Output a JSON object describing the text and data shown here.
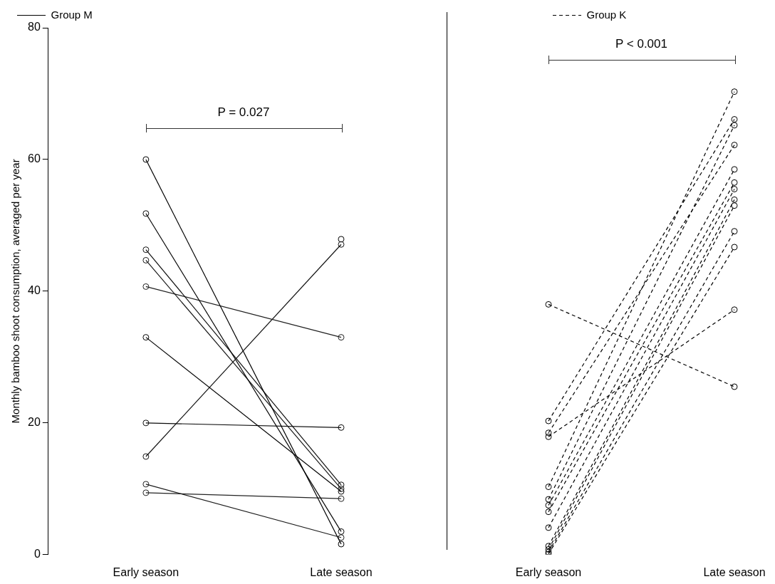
{
  "chart_data": [
    {
      "type": "line",
      "ylabel": "Monthly bamboo shoot consumption, averaged per year",
      "categories": [
        "Early season",
        "Late season"
      ],
      "ylim": [
        0,
        80
      ],
      "yticks": [
        0,
        20,
        40,
        60,
        80
      ],
      "legend": "top left",
      "marker": "circle",
      "line_style": "solid",
      "grid": false,
      "annotations": [
        "P = 0.027"
      ],
      "series": [
        {
          "name": "Group M",
          "color": "#000000",
          "values": [
            60,
            1.6
          ]
        },
        {
          "color": "#080808",
          "values": [
            51.8,
            3.5
          ]
        },
        {
          "color": "#101010",
          "values": [
            46.3,
            10.6
          ]
        },
        {
          "color": "#181818",
          "values": [
            44.7,
            10.0
          ]
        },
        {
          "color": "#202020",
          "values": [
            40.7,
            33.0
          ]
        },
        {
          "color": "#040404",
          "values": [
            33.0,
            9.6
          ]
        },
        {
          "color": "#0c0c0c",
          "values": [
            20.0,
            19.3
          ]
        },
        {
          "color": "#141414",
          "values": [
            14.9,
            47.1
          ]
        },
        {
          "color": "#1c1c1c",
          "values": [
            10.7,
            2.6
          ]
        },
        {
          "color": "#242424",
          "values": [
            9.4,
            8.5
          ]
        },
        {
          "color": "#000000",
          "values": [
            null,
            47.9
          ]
        }
      ]
    },
    {
      "type": "line",
      "categories": [
        "Early season",
        "Late season"
      ],
      "ylim": [
        0,
        80
      ],
      "yticks": [
        0,
        20,
        40,
        60,
        80
      ],
      "tick_labels": "x",
      "legend": "top left",
      "marker": "circle",
      "line_style": "dashed",
      "grid": false,
      "annotations": [
        "P < 0.001"
      ],
      "series": [
        {
          "name": "Group K",
          "color": "#000000",
          "values": [
            38.0,
            25.5
          ]
        },
        {
          "color": "#000000",
          "values": [
            20.3,
            66.1
          ]
        },
        {
          "color": "#000000",
          "values": [
            18.5,
            62.2
          ]
        },
        {
          "color": "#000000",
          "values": [
            17.9,
            37.2
          ]
        },
        {
          "color": "#000000",
          "values": [
            10.3,
            70.3
          ]
        },
        {
          "color": "#000000",
          "values": [
            8.4,
            65.2
          ]
        },
        {
          "color": "#000000",
          "values": [
            7.5,
            58.5
          ]
        },
        {
          "color": "#000000",
          "values": [
            6.5,
            56.5
          ]
        },
        {
          "color": "#000000",
          "values": [
            4.1,
            55.5
          ]
        },
        {
          "color": "#000000",
          "values": [
            1.3,
            53.9
          ]
        },
        {
          "color": "#000000",
          "values": [
            0.8,
            53.0
          ]
        },
        {
          "color": "#000000",
          "values": [
            0.4,
            49.1
          ]
        },
        {
          "color": "#000000",
          "values": [
            0.1,
            46.7
          ]
        }
      ]
    }
  ]
}
